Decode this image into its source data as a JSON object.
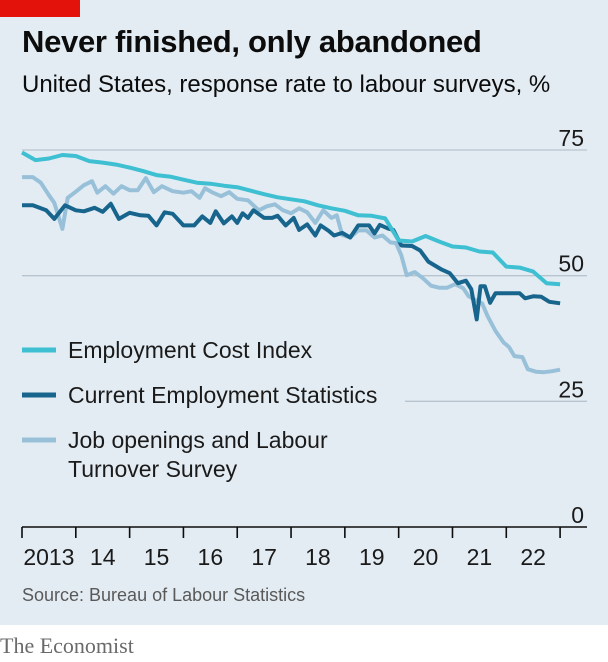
{
  "header": {
    "title": "Never finished, only abandoned",
    "subtitle": "United States, response rate to labour surveys, %"
  },
  "footer": {
    "source": "Source: Bureau of Labour Statistics",
    "brand": "The Economist"
  },
  "colors": {
    "brand_red": "#e3120b",
    "eci": "#3ebfd2",
    "ces": "#17648d",
    "jolts": "#98c1d9"
  },
  "chart_data": {
    "type": "line",
    "title": "Never finished, only abandoned",
    "subtitle": "United States, response rate to labour surveys, %",
    "xlabel": "",
    "ylabel": "%",
    "xlim": [
      2013,
      2023.5
    ],
    "ylim": [
      0,
      75
    ],
    "yticks": [
      0,
      25,
      50,
      75
    ],
    "ytick_labels": [
      "0",
      "25",
      "50",
      "75"
    ],
    "xticks": [
      2013,
      2014,
      2015,
      2016,
      2017,
      2018,
      2019,
      2020,
      2021,
      2022,
      2023
    ],
    "xtick_labels": [
      {
        "label": "2013",
        "at": 2013.5
      },
      {
        "label": "14",
        "at": 2014.5
      },
      {
        "label": "15",
        "at": 2015.5
      },
      {
        "label": "16",
        "at": 2016.5
      },
      {
        "label": "17",
        "at": 2017.5
      },
      {
        "label": "18",
        "at": 2018.5
      },
      {
        "label": "19",
        "at": 2019.5
      },
      {
        "label": "20",
        "at": 2020.5
      },
      {
        "label": "21",
        "at": 2021.5
      },
      {
        "label": "22",
        "at": 2022.5
      }
    ],
    "series": [
      {
        "name": "Employment Cost Index",
        "color": "#3ebfd2",
        "points": [
          [
            2013.0,
            74.5
          ],
          [
            2013.25,
            73.0
          ],
          [
            2013.5,
            73.3
          ],
          [
            2013.75,
            74.0
          ],
          [
            2014.0,
            73.8
          ],
          [
            2014.25,
            72.8
          ],
          [
            2014.5,
            72.5
          ],
          [
            2014.75,
            72.1
          ],
          [
            2015.0,
            71.5
          ],
          [
            2015.25,
            70.8
          ],
          [
            2015.5,
            70.0
          ],
          [
            2015.75,
            69.7
          ],
          [
            2016.0,
            69.1
          ],
          [
            2016.25,
            68.5
          ],
          [
            2016.5,
            68.3
          ],
          [
            2016.75,
            67.9
          ],
          [
            2017.0,
            67.6
          ],
          [
            2017.25,
            66.9
          ],
          [
            2017.5,
            66.2
          ],
          [
            2017.75,
            65.6
          ],
          [
            2018.0,
            65.2
          ],
          [
            2018.25,
            64.8
          ],
          [
            2018.5,
            64.0
          ],
          [
            2018.75,
            63.4
          ],
          [
            2019.0,
            62.9
          ],
          [
            2019.25,
            62.0
          ],
          [
            2019.5,
            61.9
          ],
          [
            2019.75,
            61.4
          ],
          [
            2020.0,
            57.0
          ],
          [
            2020.25,
            56.8
          ],
          [
            2020.5,
            57.9
          ],
          [
            2020.75,
            56.8
          ],
          [
            2021.0,
            55.8
          ],
          [
            2021.25,
            55.6
          ],
          [
            2021.5,
            54.8
          ],
          [
            2021.75,
            54.6
          ],
          [
            2022.0,
            51.8
          ],
          [
            2022.25,
            51.6
          ],
          [
            2022.5,
            50.8
          ],
          [
            2022.75,
            48.5
          ],
          [
            2023.0,
            48.3
          ]
        ]
      },
      {
        "name": "Current Employment Statistics",
        "color": "#17648d",
        "points": [
          [
            2013.0,
            64.0
          ],
          [
            2013.2,
            64.0
          ],
          [
            2013.45,
            63.0
          ],
          [
            2013.6,
            61.3
          ],
          [
            2013.8,
            64.0
          ],
          [
            2014.0,
            63.0
          ],
          [
            2014.15,
            62.8
          ],
          [
            2014.35,
            63.5
          ],
          [
            2014.5,
            62.7
          ],
          [
            2014.65,
            64.3
          ],
          [
            2014.8,
            61.3
          ],
          [
            2015.0,
            62.5
          ],
          [
            2015.2,
            62.0
          ],
          [
            2015.35,
            61.9
          ],
          [
            2015.5,
            60.0
          ],
          [
            2015.65,
            62.6
          ],
          [
            2015.8,
            62.3
          ],
          [
            2016.0,
            60.0
          ],
          [
            2016.2,
            60.0
          ],
          [
            2016.35,
            61.8
          ],
          [
            2016.5,
            60.5
          ],
          [
            2016.6,
            62.8
          ],
          [
            2016.75,
            60.4
          ],
          [
            2016.9,
            61.8
          ],
          [
            2017.0,
            60.5
          ],
          [
            2017.1,
            62.4
          ],
          [
            2017.2,
            61.5
          ],
          [
            2017.3,
            63.0
          ],
          [
            2017.5,
            61.5
          ],
          [
            2017.65,
            61.5
          ],
          [
            2017.75,
            61.9
          ],
          [
            2017.9,
            60.0
          ],
          [
            2018.05,
            61.5
          ],
          [
            2018.15,
            59.1
          ],
          [
            2018.3,
            60.2
          ],
          [
            2018.45,
            58.0
          ],
          [
            2018.55,
            60.0
          ],
          [
            2018.7,
            58.9
          ],
          [
            2018.8,
            58.0
          ],
          [
            2018.95,
            58.5
          ],
          [
            2019.1,
            57.6
          ],
          [
            2019.25,
            60.0
          ],
          [
            2019.45,
            60.0
          ],
          [
            2019.55,
            58.4
          ],
          [
            2019.65,
            60.1
          ],
          [
            2019.8,
            59.4
          ],
          [
            2019.9,
            59.1
          ],
          [
            2020.05,
            56.0
          ],
          [
            2020.25,
            55.9
          ],
          [
            2020.4,
            55.0
          ],
          [
            2020.55,
            52.8
          ],
          [
            2020.8,
            51.2
          ],
          [
            2020.95,
            50.5
          ],
          [
            2021.1,
            48.5
          ],
          [
            2021.25,
            49.0
          ],
          [
            2021.35,
            47.3
          ],
          [
            2021.45,
            41.3
          ],
          [
            2021.52,
            47.9
          ],
          [
            2021.6,
            47.9
          ],
          [
            2021.7,
            44.6
          ],
          [
            2021.8,
            46.5
          ],
          [
            2022.0,
            46.5
          ],
          [
            2022.25,
            46.5
          ],
          [
            2022.35,
            45.5
          ],
          [
            2022.5,
            45.9
          ],
          [
            2022.65,
            45.8
          ],
          [
            2022.8,
            44.8
          ],
          [
            2023.0,
            44.5
          ]
        ]
      },
      {
        "name": "Job openings and Labour Turnover Survey",
        "color": "#98c1d9",
        "points": [
          [
            2013.0,
            69.6
          ],
          [
            2013.2,
            69.6
          ],
          [
            2013.35,
            68.5
          ],
          [
            2013.5,
            66.0
          ],
          [
            2013.6,
            64.5
          ],
          [
            2013.75,
            59.3
          ],
          [
            2013.85,
            65.5
          ],
          [
            2014.0,
            66.7
          ],
          [
            2014.15,
            68.0
          ],
          [
            2014.3,
            68.8
          ],
          [
            2014.4,
            66.5
          ],
          [
            2014.55,
            67.8
          ],
          [
            2014.7,
            66.3
          ],
          [
            2014.85,
            67.8
          ],
          [
            2015.0,
            67.0
          ],
          [
            2015.15,
            67.0
          ],
          [
            2015.3,
            69.4
          ],
          [
            2015.45,
            66.6
          ],
          [
            2015.6,
            67.8
          ],
          [
            2015.8,
            66.8
          ],
          [
            2016.0,
            66.5
          ],
          [
            2016.15,
            66.8
          ],
          [
            2016.3,
            65.5
          ],
          [
            2016.4,
            67.4
          ],
          [
            2016.55,
            66.5
          ],
          [
            2016.7,
            65.8
          ],
          [
            2016.85,
            66.6
          ],
          [
            2017.0,
            65.3
          ],
          [
            2017.2,
            65.0
          ],
          [
            2017.4,
            63.0
          ],
          [
            2017.55,
            63.8
          ],
          [
            2017.7,
            64.2
          ],
          [
            2017.85,
            63.0
          ],
          [
            2018.0,
            62.4
          ],
          [
            2018.15,
            63.4
          ],
          [
            2018.3,
            62.6
          ],
          [
            2018.45,
            60.5
          ],
          [
            2018.6,
            63.0
          ],
          [
            2018.75,
            61.5
          ],
          [
            2018.85,
            62.0
          ],
          [
            2018.95,
            58.1
          ],
          [
            2019.1,
            57.6
          ],
          [
            2019.25,
            59.0
          ],
          [
            2019.4,
            59.0
          ],
          [
            2019.55,
            57.6
          ],
          [
            2019.7,
            58.0
          ],
          [
            2019.85,
            56.6
          ],
          [
            2019.95,
            56.5
          ],
          [
            2020.05,
            54.0
          ],
          [
            2020.15,
            50.1
          ],
          [
            2020.3,
            50.7
          ],
          [
            2020.45,
            49.5
          ],
          [
            2020.6,
            48.0
          ],
          [
            2020.75,
            47.6
          ],
          [
            2020.9,
            47.6
          ],
          [
            2021.05,
            48.3
          ],
          [
            2021.2,
            47.5
          ],
          [
            2021.3,
            45.9
          ],
          [
            2021.45,
            45.0
          ],
          [
            2021.55,
            44.5
          ],
          [
            2021.65,
            42.0
          ],
          [
            2021.8,
            39.0
          ],
          [
            2021.95,
            36.7
          ],
          [
            2022.05,
            35.8
          ],
          [
            2022.15,
            34.0
          ],
          [
            2022.3,
            33.8
          ],
          [
            2022.4,
            31.4
          ],
          [
            2022.55,
            30.9
          ],
          [
            2022.7,
            30.8
          ],
          [
            2022.85,
            31.0
          ],
          [
            2023.0,
            31.3
          ]
        ]
      }
    ],
    "legend": [
      {
        "label": "Employment Cost Index"
      },
      {
        "label": "Current Employment Statistics"
      },
      {
        "label": "Job openings and Labour",
        "label_line2": "Turnover Survey"
      }
    ],
    "grid": true,
    "legend_position": "left, over lower half of plot"
  }
}
